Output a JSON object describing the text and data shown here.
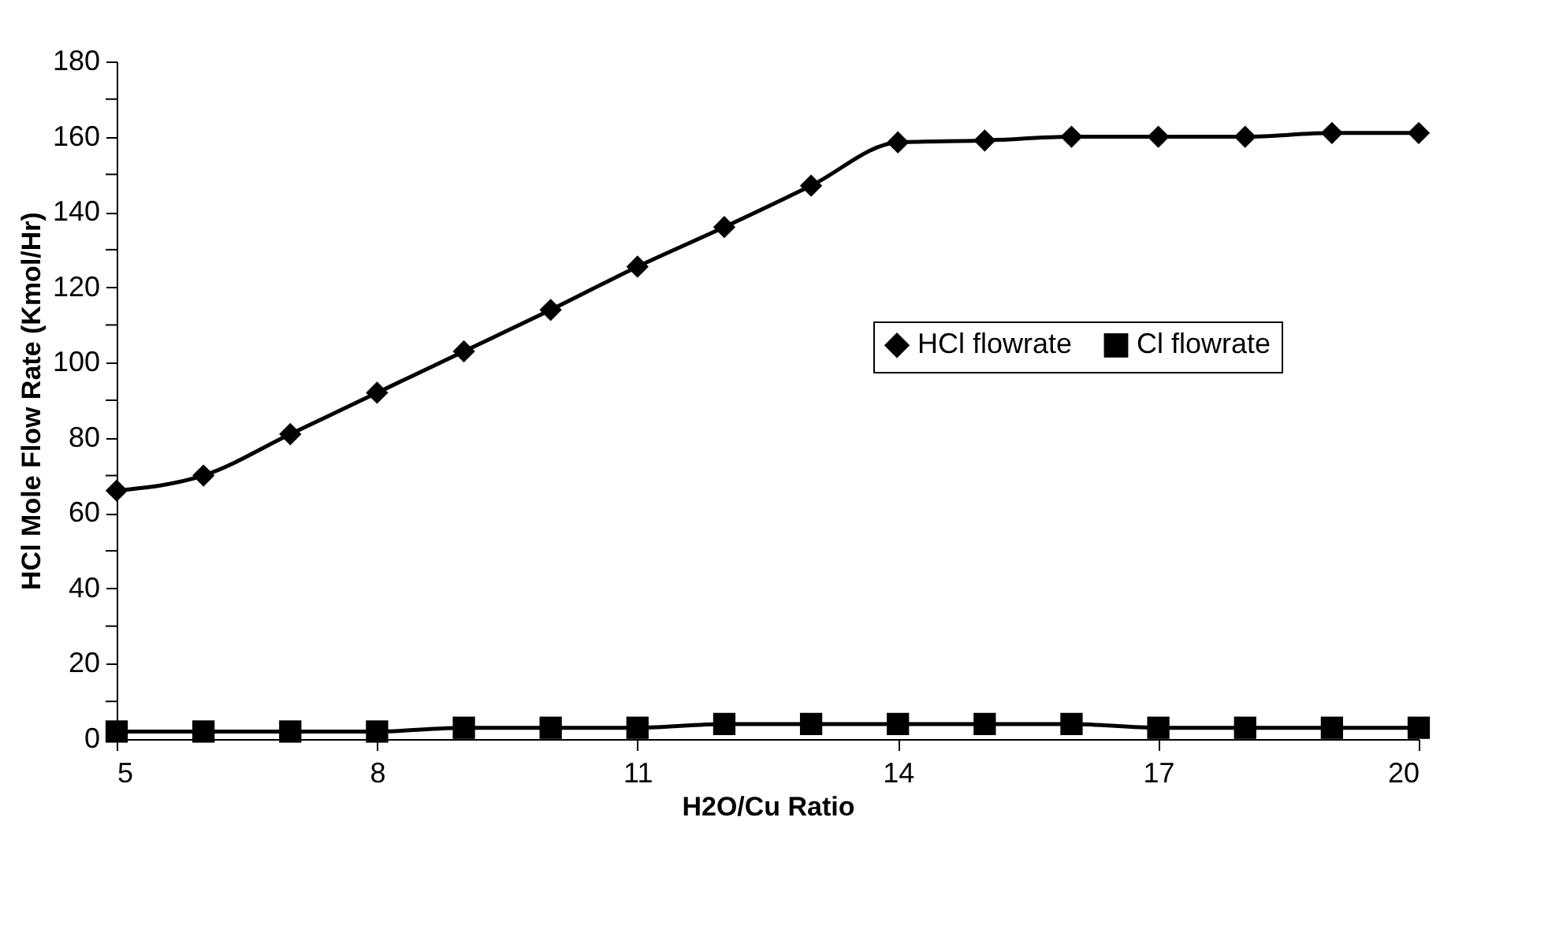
{
  "chart_data": {
    "type": "line",
    "xlabel": "H2O/Cu Ratio",
    "ylabel": "HCl Mole Flow Rate (Kmol/Hr)",
    "x": [
      5,
      6,
      7,
      8,
      9,
      10,
      11,
      12,
      13,
      14,
      15,
      16,
      17,
      18,
      19,
      20
    ],
    "xlim": [
      5,
      20
    ],
    "xticks": [
      5,
      8,
      11,
      14,
      17,
      20
    ],
    "ylim": [
      0,
      180
    ],
    "yticks": [
      0,
      {
        "value": 10,
        "label": null
      },
      20,
      {
        "value": 30,
        "label": null
      },
      40,
      {
        "value": 50,
        "label": null
      },
      60,
      {
        "value": 70,
        "label": null
      },
      80,
      {
        "value": 90,
        "label": null
      },
      100,
      {
        "value": 110,
        "label": null
      },
      120,
      {
        "value": 130,
        "label": null
      },
      140,
      {
        "value": 150,
        "label": null
      },
      160,
      {
        "value": 170,
        "label": null
      },
      180
    ],
    "grid": false,
    "legend": "right",
    "line_style": "solid",
    "series": [
      {
        "name": "HCl flowrate",
        "color": "#000000",
        "marker": "diamond",
        "values": [
          66,
          70,
          81,
          92,
          103,
          114,
          125.5,
          136,
          147,
          158.5,
          159,
          160,
          160,
          160,
          161,
          161
        ]
      },
      {
        "name": "Cl flowrate",
        "color": "#000000",
        "marker": "square",
        "values": [
          2,
          2,
          2,
          2,
          3,
          3,
          3,
          4,
          4,
          4,
          4,
          4,
          3,
          3,
          3,
          3
        ]
      }
    ]
  }
}
